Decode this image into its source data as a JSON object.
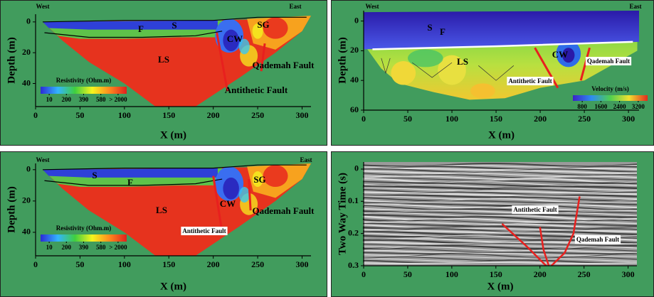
{
  "chart_data": [
    {
      "type": "resistivity",
      "left": "West",
      "right": "East",
      "xlabel": "X (m)",
      "ylabel": "Depth (m)",
      "xlim": [
        0,
        310
      ],
      "ylim": [
        -5,
        55
      ],
      "xticks": [
        0,
        50,
        100,
        150,
        200,
        250,
        300
      ],
      "yticks": [
        0,
        20,
        40
      ],
      "annotations": [
        "S",
        "F",
        "SG",
        "CW",
        "LS",
        "Qademah Fault",
        "Antithetic Fault"
      ],
      "colorbar": {
        "label": "Resistivity (Ohm.m)",
        "ticks": [
          10,
          200,
          390,
          580,
          {
            "value": 2000,
            "label": "> 2000"
          }
        ]
      }
    },
    {
      "type": "velocity",
      "left": "West",
      "right": "East",
      "xlabel": "X (m)",
      "ylabel": "Depth (m)",
      "xlim": [
        0,
        312
      ],
      "ylim": [
        -7,
        60
      ],
      "xticks": [
        0,
        50,
        100,
        150,
        200,
        250,
        300
      ],
      "yticks": [
        0,
        20,
        40,
        60
      ],
      "annotations": [
        "S",
        "F",
        "CW",
        "LS",
        "Qademah Fault",
        "Antithetic Fault"
      ],
      "colorbar": {
        "label": "Velocity (m/s)",
        "ticks": [
          800,
          1600,
          2400,
          3200
        ]
      }
    },
    {
      "type": "resistivity2",
      "left": "West",
      "right": "East",
      "xlabel": "X (m)",
      "ylabel": "Depth (m)",
      "xlim": [
        0,
        310
      ],
      "ylim": [
        -4,
        55
      ],
      "xticks": [
        0,
        50,
        100,
        150,
        200,
        250,
        300
      ],
      "yticks": [
        0,
        20,
        40
      ],
      "annotations": [
        "S",
        "F",
        "SG",
        "CW",
        "LS",
        "Qademah Fault",
        "Antithetic Fault"
      ],
      "colorbar": {
        "label": "Resistivity (Ohm.m)",
        "ticks": [
          10,
          200,
          390,
          580,
          {
            "value": 2000,
            "label": "> 2000"
          }
        ]
      }
    },
    {
      "type": "gpr",
      "xlabel": "X (m)",
      "ylabel": "Two Way Time (s)",
      "xlim": [
        0,
        310
      ],
      "ylim": [
        -0.022,
        0.3
      ],
      "xticks": [
        0,
        50,
        100,
        150,
        200,
        250,
        300
      ],
      "yticks": [
        0,
        0.1,
        0.2,
        0.3
      ],
      "annotations": [
        "Antithetic Fault",
        "Qademah Fault"
      ]
    }
  ]
}
